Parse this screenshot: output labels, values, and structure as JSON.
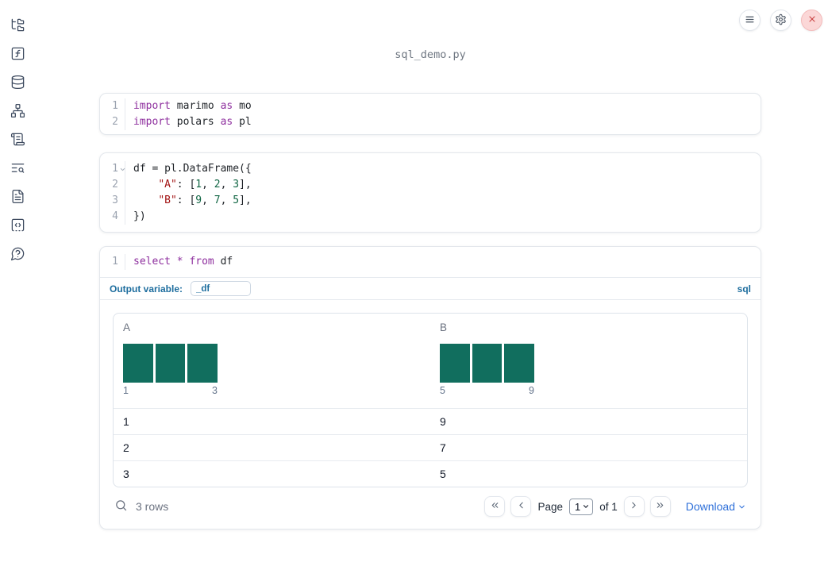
{
  "header": {
    "filename": "sql_demo.py"
  },
  "topbar": {
    "buttons": [
      {
        "icon": "menu-icon"
      },
      {
        "icon": "settings-gear-icon"
      },
      {
        "icon": "shutdown-x-icon"
      }
    ]
  },
  "sidebar": {
    "icons": [
      "file-tree-icon",
      "function-icon",
      "datasources-icon",
      "dependency-graph-icon",
      "scratchpad-icon",
      "logs-search-icon",
      "documentation-icon",
      "snippets-icon",
      "help-icon"
    ]
  },
  "cells": [
    {
      "type": "python",
      "lines": [
        {
          "no": "1",
          "tokens": [
            [
              "kw",
              "import"
            ],
            [
              "pl",
              " marimo "
            ],
            [
              "kw",
              "as"
            ],
            [
              "pl",
              " mo"
            ]
          ]
        },
        {
          "no": "2",
          "tokens": [
            [
              "kw",
              "import"
            ],
            [
              "pl",
              " polars "
            ],
            [
              "kw",
              "as"
            ],
            [
              "pl",
              " pl"
            ]
          ]
        }
      ]
    },
    {
      "type": "python",
      "lines": [
        {
          "no": "1",
          "fold": true,
          "tokens": [
            [
              "pl",
              "df = pl.DataFrame({"
            ]
          ]
        },
        {
          "no": "2",
          "tokens": [
            [
              "pl",
              "    "
            ],
            [
              "str",
              "\"A\""
            ],
            [
              "pl",
              ": ["
            ],
            [
              "num",
              "1"
            ],
            [
              "pl",
              ", "
            ],
            [
              "num",
              "2"
            ],
            [
              "pl",
              ", "
            ],
            [
              "num",
              "3"
            ],
            [
              "pl",
              "],"
            ]
          ]
        },
        {
          "no": "3",
          "tokens": [
            [
              "pl",
              "    "
            ],
            [
              "str",
              "\"B\""
            ],
            [
              "pl",
              ": ["
            ],
            [
              "num",
              "9"
            ],
            [
              "pl",
              ", "
            ],
            [
              "num",
              "7"
            ],
            [
              "pl",
              ", "
            ],
            [
              "num",
              "5"
            ],
            [
              "pl",
              "],"
            ]
          ]
        },
        {
          "no": "4",
          "tokens": [
            [
              "pl",
              "})"
            ]
          ]
        }
      ]
    },
    {
      "type": "sql",
      "lines": [
        {
          "no": "1",
          "tokens": [
            [
              "kw",
              "select"
            ],
            [
              "pl",
              " "
            ],
            [
              "kw",
              "*"
            ],
            [
              "pl",
              " "
            ],
            [
              "kw",
              "from"
            ],
            [
              "pl",
              " df"
            ]
          ]
        }
      ]
    }
  ],
  "sql_cell": {
    "output_variable_label": "Output variable:",
    "output_variable_value": "_df",
    "language_badge": "sql"
  },
  "table": {
    "columns": [
      {
        "name": "A",
        "hist": {
          "counts": [
            1,
            1,
            1
          ],
          "min_label": "1",
          "max_label": "3"
        }
      },
      {
        "name": "B",
        "hist": {
          "counts": [
            1,
            1,
            1
          ],
          "min_label": "5",
          "max_label": "9"
        }
      }
    ],
    "rows": [
      [
        "1",
        "9"
      ],
      [
        "2",
        "7"
      ],
      [
        "3",
        "5"
      ]
    ],
    "footer": {
      "row_count": "3 rows",
      "page_label": "Page",
      "page_value": "1",
      "of_label": "of 1",
      "download_label": "Download"
    }
  },
  "colors": {
    "histogram_bar": "#116e5e",
    "keyword": "#8e2f9e",
    "string": "#a31515",
    "number": "#116644",
    "sql_accent": "#1d6d9e",
    "download_link": "#2d6fd9",
    "shutdown_red": "#cb4444"
  }
}
